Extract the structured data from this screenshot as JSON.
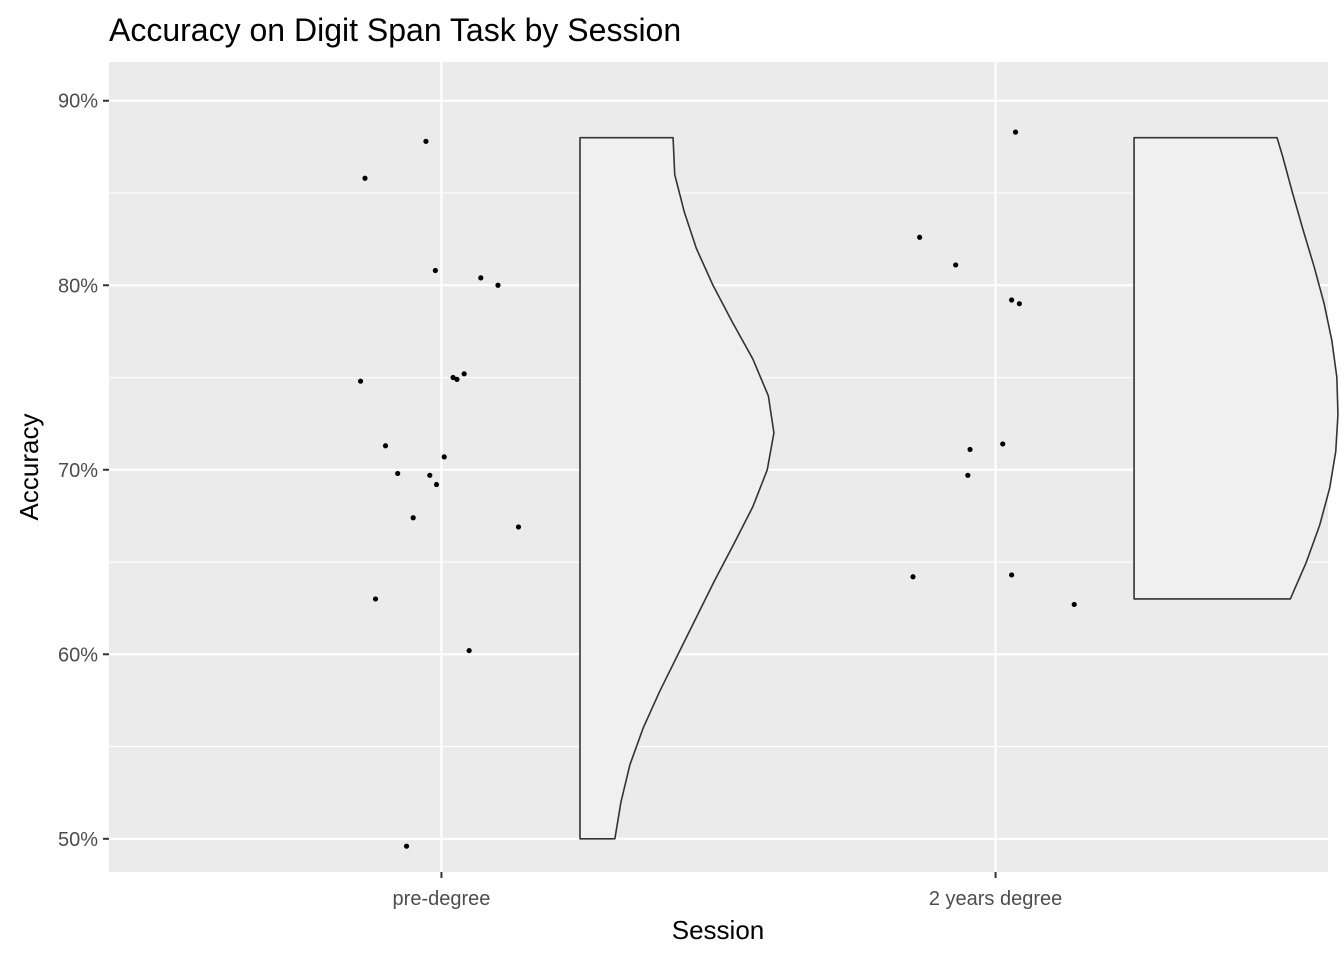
{
  "chart_data": {
    "type": "scatter",
    "title": "Accuracy on Digit Span Task by Session",
    "xlabel": "Session",
    "ylabel": "Accuracy",
    "categories": [
      "pre-degree",
      "2 years degree"
    ],
    "y_tick_labels": [
      "50%",
      "60%",
      "70%",
      "80%",
      "90%"
    ],
    "y_ticks": [
      0.5,
      0.6,
      0.7,
      0.8,
      0.9
    ],
    "ylim": [
      0.482,
      0.921
    ],
    "grid": true,
    "legend": "none",
    "colors": {
      "panel": "#ebebeb",
      "grid": "#ffffff",
      "point": "#000000",
      "violin_fill": "#f0f0f0",
      "violin_outline": "#333333",
      "tick": "#333333"
    },
    "series": [
      {
        "category": "pre-degree",
        "points": [
          {
            "x": -0.146,
            "y": 0.748
          },
          {
            "x": -0.138,
            "y": 0.858
          },
          {
            "x": -0.119,
            "y": 0.63
          },
          {
            "x": -0.101,
            "y": 0.713
          },
          {
            "x": -0.079,
            "y": 0.698
          },
          {
            "x": -0.063,
            "y": 0.496
          },
          {
            "x": -0.051,
            "y": 0.674
          },
          {
            "x": -0.028,
            "y": 0.878
          },
          {
            "x": -0.021,
            "y": 0.697
          },
          {
            "x": -0.011,
            "y": 0.808
          },
          {
            "x": -0.009,
            "y": 0.692
          },
          {
            "x": 0.005,
            "y": 0.707
          },
          {
            "x": 0.021,
            "y": 0.75
          },
          {
            "x": 0.028,
            "y": 0.749
          },
          {
            "x": 0.041,
            "y": 0.752
          },
          {
            "x": 0.05,
            "y": 0.602
          },
          {
            "x": 0.071,
            "y": 0.804
          },
          {
            "x": 0.102,
            "y": 0.8
          },
          {
            "x": 0.139,
            "y": 0.669
          }
        ],
        "half_violin": {
          "min": 0.5,
          "max": 0.88,
          "profile": [
            {
              "y": 0.5,
              "w": 0.063
            },
            {
              "y": 0.52,
              "w": 0.074
            },
            {
              "y": 0.54,
              "w": 0.09
            },
            {
              "y": 0.56,
              "w": 0.114
            },
            {
              "y": 0.58,
              "w": 0.144
            },
            {
              "y": 0.6,
              "w": 0.177
            },
            {
              "y": 0.62,
              "w": 0.21
            },
            {
              "y": 0.64,
              "w": 0.243
            },
            {
              "y": 0.66,
              "w": 0.278
            },
            {
              "y": 0.68,
              "w": 0.312
            },
            {
              "y": 0.7,
              "w": 0.338
            },
            {
              "y": 0.72,
              "w": 0.35
            },
            {
              "y": 0.74,
              "w": 0.34
            },
            {
              "y": 0.76,
              "w": 0.312
            },
            {
              "y": 0.78,
              "w": 0.275
            },
            {
              "y": 0.8,
              "w": 0.24
            },
            {
              "y": 0.82,
              "w": 0.21
            },
            {
              "y": 0.84,
              "w": 0.188
            },
            {
              "y": 0.86,
              "w": 0.171
            },
            {
              "y": 0.88,
              "w": 0.168
            }
          ]
        }
      },
      {
        "category": "2 years degree",
        "points": [
          {
            "x": -0.149,
            "y": 0.642
          },
          {
            "x": -0.137,
            "y": 0.826
          },
          {
            "x": -0.072,
            "y": 0.811
          },
          {
            "x": -0.05,
            "y": 0.697
          },
          {
            "x": -0.046,
            "y": 0.711
          },
          {
            "x": 0.013,
            "y": 0.714
          },
          {
            "x": 0.029,
            "y": 0.792
          },
          {
            "x": 0.029,
            "y": 0.643
          },
          {
            "x": 0.036,
            "y": 0.883
          },
          {
            "x": 0.043,
            "y": 0.79
          },
          {
            "x": 0.142,
            "y": 0.627
          }
        ],
        "half_violin": {
          "min": 0.63,
          "max": 0.88,
          "profile": [
            {
              "y": 0.63,
              "w": 0.282
            },
            {
              "y": 0.65,
              "w": 0.311
            },
            {
              "y": 0.67,
              "w": 0.335
            },
            {
              "y": 0.69,
              "w": 0.353
            },
            {
              "y": 0.71,
              "w": 0.364
            },
            {
              "y": 0.73,
              "w": 0.368
            },
            {
              "y": 0.75,
              "w": 0.366
            },
            {
              "y": 0.77,
              "w": 0.357
            },
            {
              "y": 0.79,
              "w": 0.343
            },
            {
              "y": 0.81,
              "w": 0.325
            },
            {
              "y": 0.83,
              "w": 0.305
            },
            {
              "y": 0.85,
              "w": 0.286
            },
            {
              "y": 0.87,
              "w": 0.268
            },
            {
              "y": 0.88,
              "w": 0.258
            }
          ]
        }
      }
    ]
  }
}
